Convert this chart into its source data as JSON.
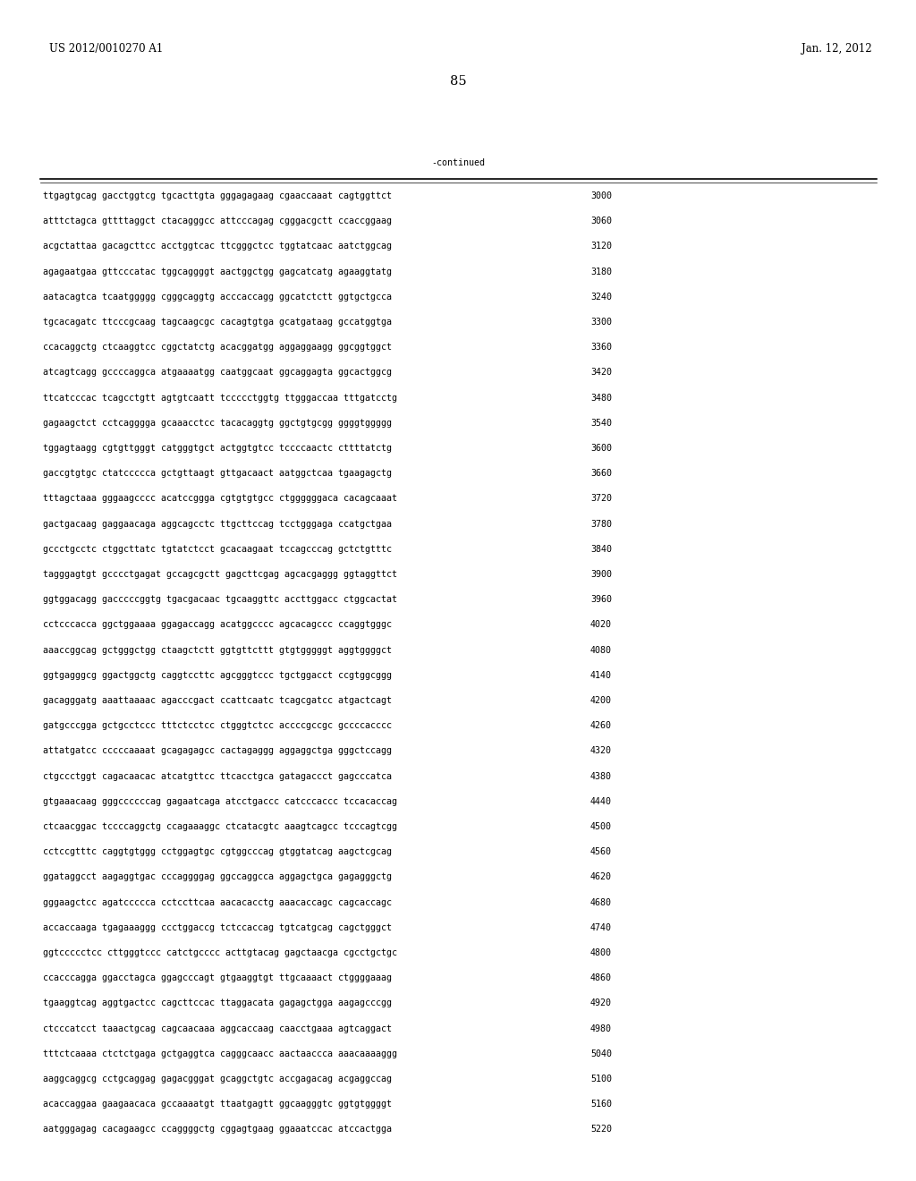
{
  "header_left": "US 2012/0010270 A1",
  "header_right": "Jan. 12, 2012",
  "page_number": "85",
  "continued_label": "-continued",
  "background_color": "#ffffff",
  "text_color": "#000000",
  "font_size_header": 8.5,
  "font_size_body": 7.2,
  "font_size_page": 10.5,
  "sequences": [
    [
      "ttgagtgcag gacctggtcg tgcacttgta gggagagaag cgaaccaaat cagtggttct",
      "3000"
    ],
    [
      "atttctagca gttttaggct ctacagggcc attcccagag cgggacgctt ccaccggaag",
      "3060"
    ],
    [
      "acgctattaa gacagcttcc acctggtcac ttcgggctcc tggtatcaac aatctggcag",
      "3120"
    ],
    [
      "agagaatgaa gttcccatac tggcaggggt aactggctgg gagcatcatg agaaggtatg",
      "3180"
    ],
    [
      "aatacagtca tcaatggggg cgggcaggtg acccaccagg ggcatctctt ggtgctgcca",
      "3240"
    ],
    [
      "tgcacagatc ttcccgcaag tagcaagcgc cacagtgtga gcatgataag gccatggtga",
      "3300"
    ],
    [
      "ccacaggctg ctcaaggtcc cggctatctg acacggatgg aggaggaagg ggcggtggct",
      "3360"
    ],
    [
      "atcagtcagg gccccaggca atgaaaatgg caatggcaat ggcaggagta ggcactggcg",
      "3420"
    ],
    [
      "ttcatcccac tcagcctgtt agtgtcaatt tccccctggtg ttgggaccaa tttgatcctg",
      "3480"
    ],
    [
      "gagaagctct cctcagggga gcaaacctcc tacacaggtg ggctgtgcgg ggggtggggg",
      "3540"
    ],
    [
      "tggagtaagg cgtgttgggt catgggtgct actggtgtcc tccccaactc cttttatctg",
      "3600"
    ],
    [
      "gaccgtgtgc ctatccccca gctgttaagt gttgacaact aatggctcaa tgaagagctg",
      "3660"
    ],
    [
      "tttagctaaa gggaagcccc acatccggga cgtgtgtgcc ctggggggaca cacagcaaat",
      "3720"
    ],
    [
      "gactgacaag gaggaacaga aggcagcctc ttgcttccag tcctgggaga ccatgctgaa",
      "3780"
    ],
    [
      "gccctgcctc ctggcttatc tgtatctcct gcacaagaat tccagcccag gctctgtttc",
      "3840"
    ],
    [
      "tagggagtgt gcccctgagat gccagcgctt gagcttcgag agcacgaggg ggtaggttct",
      "3900"
    ],
    [
      "ggtggacagg gacccccggtg tgacgacaac tgcaaggttc accttggacc ctggcactat",
      "3960"
    ],
    [
      "cctcccacca ggctggaaaa ggagaccagg acatggcccc agcacagccc ccaggtgggc",
      "4020"
    ],
    [
      "aaaccggcag gctgggctgg ctaagctctt ggtgttcttt gtgtgggggt aggtggggct",
      "4080"
    ],
    [
      "ggtgagggcg ggactggctg caggtccttc agcgggtccc tgctggacct ccgtggcggg",
      "4140"
    ],
    [
      "gacagggatg aaattaaaac agacccgact ccattcaatc tcagcgatcc atgactcagt",
      "4200"
    ],
    [
      "gatgcccgga gctgcctccc tttctcctcc ctgggtctcc accccgccgc gccccacccc",
      "4260"
    ],
    [
      "attatgatcc cccccaaaat gcagagagcc cactagaggg aggaggctga gggctccagg",
      "4320"
    ],
    [
      "ctgccctggt cagacaacac atcatgttcc ttcacctgca gatagaccct gagcccatca",
      "4380"
    ],
    [
      "gtgaaacaag gggccccccag gagaatcaga atcctgaccc catcccaccc tccacaccag",
      "4440"
    ],
    [
      "ctcaacggac tccccaggctg ccagaaaggc ctcatacgtc aaagtcagcc tcccagtcgg",
      "4500"
    ],
    [
      "cctccgtttc caggtgtggg cctggagtgc cgtggcccag gtggtatcag aagctcgcag",
      "4560"
    ],
    [
      "ggataggcct aagaggtgac cccaggggag ggccaggcca aggagctgca gagagggctg",
      "4620"
    ],
    [
      "gggaagctcc agatccccca cctccttcaa aacacacctg aaacaccagc cagcaccagc",
      "4680"
    ],
    [
      "accaccaaga tgagaaaggg ccctggaccg tctccaccag tgtcatgcag cagctgggct",
      "4740"
    ],
    [
      "ggtccccctcc cttgggtccc catctgcccc acttgtacag gagctaacga cgcctgctgc",
      "4800"
    ],
    [
      "ccacccagga ggacctagca ggagcccagt gtgaaggtgt ttgcaaaact ctggggaaag",
      "4860"
    ],
    [
      "tgaaggtcag aggtgactcc cagcttccac ttaggacata gagagctgga aagagcccgg",
      "4920"
    ],
    [
      "ctcccatcct taaactgcag cagcaacaaa aggcaccaag caacctgaaa agtcaggact",
      "4980"
    ],
    [
      "tttctcaaaa ctctctgaga gctgaggtca cagggcaacc aactaaccca aaacaaaaggg",
      "5040"
    ],
    [
      "aaggcaggcg cctgcaggag gagacgggat gcaggctgtc accgagacag acgaggccag",
      "5100"
    ],
    [
      "acaccaggaa gaagaacaca gccaaaatgt ttaatgagtt ggcaagggtc ggtgtggggt",
      "5160"
    ],
    [
      "aatgggagag cacagaagcc ccaggggctg cggagtgaag ggaaatccac atccactgga",
      "5220"
    ]
  ]
}
